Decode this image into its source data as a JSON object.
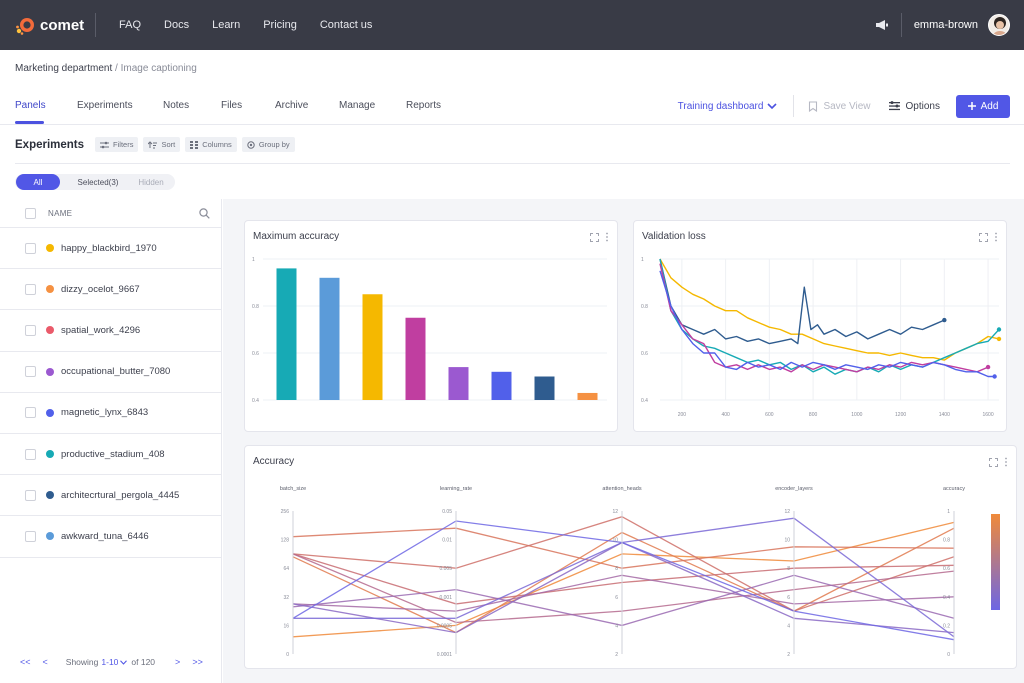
{
  "brand": {
    "name": "comet"
  },
  "topnav": {
    "links": [
      "FAQ",
      "Docs",
      "Learn",
      "Pricing",
      "Contact us"
    ],
    "username": "emma-brown"
  },
  "breadcrumb": {
    "parent": "Marketing department",
    "separator": " / ",
    "current": "Image captioning"
  },
  "tabs": [
    "Panels",
    "Experiments",
    "Notes",
    "Files",
    "Archive",
    "Manage",
    "Reports"
  ],
  "toolbar": {
    "dashboard_label": "Training dashboard",
    "save_view_label": "Save View",
    "options_label": "Options",
    "add_label": "Add"
  },
  "experiments": {
    "title": "Experiments",
    "chips": [
      "Filters",
      "Sort",
      "Columns",
      "Group by"
    ],
    "segments": {
      "all": "All",
      "selected": "Selected(3)",
      "hidden": "Hidden"
    },
    "name_header": "NAME",
    "rows": [
      {
        "name": "happy_blackbird_1970",
        "color": "#f5b800"
      },
      {
        "name": "dizzy_ocelot_9667",
        "color": "#f59142"
      },
      {
        "name": "spatial_work_4296",
        "color": "#ea5a6a"
      },
      {
        "name": "occupational_butter_7080",
        "color": "#9b59d0"
      },
      {
        "name": "magnetic_lynx_6843",
        "color": "#5160ea"
      },
      {
        "name": "productive_stadium_408",
        "color": "#17aab5"
      },
      {
        "name": "architecrtural_pergola_4445",
        "color": "#2f5c8f"
      },
      {
        "name": "awkward_tuna_6446",
        "color": "#5b9bd9"
      }
    ],
    "pager": {
      "first": "<<",
      "prev": "<",
      "showing": "Showing",
      "range": "1-10",
      "of": "of 120",
      "next": ">",
      "last": ">>"
    }
  },
  "panels": {
    "max_accuracy": {
      "title": "Maximum accuracy"
    },
    "val_loss": {
      "title": "Validation loss"
    },
    "accuracy": {
      "title": "Accuracy"
    }
  },
  "chart_data": [
    {
      "type": "bar",
      "title": "Maximum accuracy",
      "ylim": [
        0.4,
        1
      ],
      "yticks": [
        "0.4",
        "0.6",
        "0.8",
        "1"
      ],
      "values": [
        0.96,
        0.92,
        0.85,
        0.75,
        0.54,
        0.52,
        0.5,
        0.43
      ],
      "colors": [
        "#17aab5",
        "#5b9bd9",
        "#f5b800",
        "#c03ea0",
        "#9b59d0",
        "#5160ea",
        "#2f5c8f",
        "#f59142"
      ]
    },
    {
      "type": "line",
      "title": "Validation loss",
      "xlim": [
        100,
        1650
      ],
      "ylim": [
        0.4,
        1
      ],
      "xticks": [
        "200",
        "400",
        "600",
        "800",
        "1000",
        "1200",
        "1400",
        "1600"
      ],
      "yticks": [
        "0.4",
        "0.6",
        "0.8",
        "1"
      ],
      "series": [
        {
          "color": "#f5b800",
          "points": [
            [
              100,
              1
            ],
            [
              150,
              0.92
            ],
            [
              200,
              0.88
            ],
            [
              250,
              0.85
            ],
            [
              300,
              0.83
            ],
            [
              350,
              0.8
            ],
            [
              400,
              0.78
            ],
            [
              450,
              0.78
            ],
            [
              500,
              0.75
            ],
            [
              550,
              0.73
            ],
            [
              600,
              0.71
            ],
            [
              650,
              0.7
            ],
            [
              700,
              0.68
            ],
            [
              750,
              0.68
            ],
            [
              800,
              0.66
            ],
            [
              850,
              0.64
            ],
            [
              900,
              0.63
            ],
            [
              950,
              0.62
            ],
            [
              1000,
              0.61
            ],
            [
              1050,
              0.6
            ],
            [
              1100,
              0.6
            ],
            [
              1150,
              0.59
            ],
            [
              1200,
              0.6
            ],
            [
              1250,
              0.59
            ],
            [
              1300,
              0.58
            ],
            [
              1350,
              0.58
            ],
            [
              1400,
              0.57
            ],
            [
              1450,
              0.6
            ],
            [
              1500,
              0.62
            ],
            [
              1550,
              0.64
            ],
            [
              1600,
              0.67
            ],
            [
              1650,
              0.66
            ]
          ]
        },
        {
          "color": "#2f5c8f",
          "points": [
            [
              100,
              1
            ],
            [
              150,
              0.8
            ],
            [
              200,
              0.72
            ],
            [
              250,
              0.7
            ],
            [
              300,
              0.68
            ],
            [
              350,
              0.7
            ],
            [
              400,
              0.66
            ],
            [
              450,
              0.67
            ],
            [
              500,
              0.65
            ],
            [
              550,
              0.66
            ],
            [
              600,
              0.64
            ],
            [
              650,
              0.65
            ],
            [
              700,
              0.66
            ],
            [
              730,
              0.64
            ],
            [
              760,
              0.88
            ],
            [
              790,
              0.7
            ],
            [
              820,
              0.72
            ],
            [
              850,
              0.68
            ],
            [
              900,
              0.7
            ],
            [
              950,
              0.67
            ],
            [
              1000,
              0.69
            ],
            [
              1050,
              0.66
            ],
            [
              1100,
              0.68
            ],
            [
              1150,
              0.7
            ],
            [
              1200,
              0.68
            ],
            [
              1250,
              0.71
            ],
            [
              1300,
              0.7
            ],
            [
              1350,
              0.72
            ],
            [
              1400,
              0.74
            ]
          ]
        },
        {
          "color": "#17aab5",
          "points": [
            [
              100,
              1
            ],
            [
              150,
              0.78
            ],
            [
              200,
              0.7
            ],
            [
              250,
              0.66
            ],
            [
              300,
              0.63
            ],
            [
              350,
              0.62
            ],
            [
              400,
              0.6
            ],
            [
              450,
              0.58
            ],
            [
              500,
              0.56
            ],
            [
              550,
              0.57
            ],
            [
              600,
              0.55
            ],
            [
              650,
              0.56
            ],
            [
              700,
              0.53
            ],
            [
              750,
              0.55
            ],
            [
              800,
              0.52
            ],
            [
              850,
              0.54
            ],
            [
              900,
              0.51
            ],
            [
              950,
              0.53
            ],
            [
              1000,
              0.52
            ],
            [
              1050,
              0.54
            ],
            [
              1100,
              0.52
            ],
            [
              1150,
              0.55
            ],
            [
              1200,
              0.53
            ],
            [
              1250,
              0.55
            ],
            [
              1300,
              0.54
            ],
            [
              1350,
              0.56
            ],
            [
              1400,
              0.58
            ],
            [
              1450,
              0.6
            ],
            [
              1500,
              0.62
            ],
            [
              1550,
              0.64
            ],
            [
              1600,
              0.65
            ],
            [
              1650,
              0.7
            ]
          ]
        },
        {
          "color": "#c03ea0",
          "points": [
            [
              100,
              0.98
            ],
            [
              150,
              0.78
            ],
            [
              200,
              0.72
            ],
            [
              250,
              0.66
            ],
            [
              300,
              0.64
            ],
            [
              350,
              0.56
            ],
            [
              400,
              0.54
            ],
            [
              450,
              0.55
            ],
            [
              500,
              0.53
            ],
            [
              550,
              0.55
            ],
            [
              600,
              0.53
            ],
            [
              650,
              0.54
            ],
            [
              700,
              0.52
            ],
            [
              750,
              0.55
            ],
            [
              800,
              0.53
            ],
            [
              850,
              0.55
            ],
            [
              900,
              0.54
            ],
            [
              950,
              0.53
            ],
            [
              1000,
              0.52
            ],
            [
              1050,
              0.54
            ],
            [
              1100,
              0.53
            ],
            [
              1150,
              0.55
            ],
            [
              1200,
              0.54
            ],
            [
              1250,
              0.56
            ],
            [
              1300,
              0.55
            ],
            [
              1350,
              0.56
            ],
            [
              1400,
              0.55
            ],
            [
              1450,
              0.54
            ],
            [
              1500,
              0.53
            ],
            [
              1550,
              0.52
            ],
            [
              1600,
              0.54
            ]
          ]
        },
        {
          "color": "#5160ea",
          "points": [
            [
              100,
              0.95
            ],
            [
              150,
              0.8
            ],
            [
              200,
              0.7
            ],
            [
              250,
              0.64
            ],
            [
              300,
              0.6
            ],
            [
              350,
              0.6
            ],
            [
              400,
              0.54
            ],
            [
              450,
              0.53
            ],
            [
              500,
              0.56
            ],
            [
              550,
              0.54
            ],
            [
              600,
              0.55
            ],
            [
              650,
              0.53
            ],
            [
              700,
              0.56
            ],
            [
              750,
              0.54
            ],
            [
              800,
              0.56
            ],
            [
              850,
              0.55
            ],
            [
              900,
              0.53
            ],
            [
              950,
              0.55
            ],
            [
              1000,
              0.54
            ],
            [
              1050,
              0.53
            ],
            [
              1100,
              0.55
            ],
            [
              1150,
              0.54
            ],
            [
              1200,
              0.56
            ],
            [
              1250,
              0.55
            ],
            [
              1300,
              0.54
            ],
            [
              1350,
              0.56
            ],
            [
              1400,
              0.55
            ],
            [
              1450,
              0.53
            ],
            [
              1500,
              0.52
            ],
            [
              1550,
              0.52
            ],
            [
              1600,
              0.5
            ],
            [
              1630,
              0.5
            ]
          ]
        }
      ]
    },
    {
      "type": "parallel_coordinates",
      "title": "Accuracy",
      "axes": [
        {
          "label": "batch_size",
          "ticks": [
            "256",
            "128",
            "64",
            "32",
            "16",
            "0"
          ]
        },
        {
          "label": "learning_rate",
          "ticks": [
            "0.05",
            "0.01",
            "0.005",
            "0.001",
            "0.0005",
            "0.0001"
          ]
        },
        {
          "label": "attention_heads",
          "ticks": [
            "12",
            "10",
            "8",
            "6",
            "4",
            "2"
          ]
        },
        {
          "label": "encoder_layers",
          "ticks": [
            "12",
            "10",
            "8",
            "6",
            "4",
            "2"
          ]
        },
        {
          "label": "accuracy",
          "ticks": [
            "1",
            "0.8",
            "0.6",
            "0.4",
            "0.2",
            "0"
          ]
        }
      ],
      "lines": [
        {
          "color": "#f08a3a",
          "values": [
            0.12,
            0.2,
            0.7,
            0.65,
            0.92
          ]
        },
        {
          "color": "#e07a4f",
          "values": [
            0.68,
            0.15,
            0.85,
            0.3,
            0.88
          ]
        },
        {
          "color": "#d8745c",
          "values": [
            0.82,
            0.88,
            0.6,
            0.75,
            0.74
          ]
        },
        {
          "color": "#cf7068",
          "values": [
            0.7,
            0.6,
            0.96,
            0.3,
            0.68
          ]
        },
        {
          "color": "#c86c72",
          "values": [
            0.7,
            0.35,
            0.5,
            0.6,
            0.62
          ]
        },
        {
          "color": "#b56a8e",
          "values": [
            0.7,
            0.22,
            0.3,
            0.45,
            0.58
          ]
        },
        {
          "color": "#a46aa6",
          "values": [
            0.35,
            0.3,
            0.55,
            0.35,
            0.4
          ]
        },
        {
          "color": "#9a6ab2",
          "values": [
            0.33,
            0.45,
            0.2,
            0.55,
            0.25
          ]
        },
        {
          "color": "#8a69c4",
          "values": [
            0.35,
            0.15,
            0.78,
            0.25,
            0.15
          ]
        },
        {
          "color": "#7a68d6",
          "values": [
            0.25,
            0.25,
            0.78,
            0.95,
            0.12
          ]
        },
        {
          "color": "#6d66e4",
          "values": [
            0.25,
            0.93,
            0.78,
            0.3,
            0.1
          ]
        }
      ],
      "colorbar": [
        "#f08a3a",
        "#6d66e4"
      ]
    }
  ]
}
